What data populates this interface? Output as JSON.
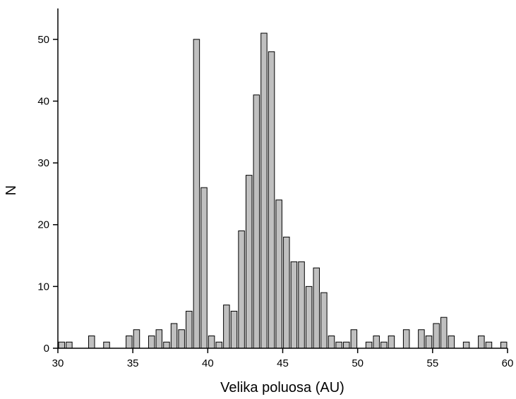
{
  "chart_data": {
    "type": "histogram",
    "x_label": "Velika poluosa (AU)",
    "y_label": "N",
    "bins": [
      30,
      30.5,
      31,
      31.5,
      32,
      32.5,
      33,
      33.5,
      34,
      34.5,
      35,
      35.5,
      36,
      36.5,
      37,
      37.5,
      38,
      38.5,
      39,
      39.5,
      40,
      40.5,
      41,
      41.5,
      42,
      42.5,
      43,
      43.5,
      44,
      44.5,
      45,
      45.5,
      46,
      46.5,
      47,
      47.5,
      48,
      48.5,
      49,
      49.5,
      50,
      50.5,
      51,
      51.5,
      52,
      52.5,
      53,
      53.5,
      54,
      54.5,
      55,
      55.5,
      56,
      56.5,
      57,
      57.5,
      58,
      58.5,
      59,
      59.5,
      60
    ],
    "values": [
      1,
      1,
      0,
      0,
      2,
      0,
      1,
      0,
      0,
      2,
      3,
      0,
      2,
      3,
      1,
      4,
      3,
      6,
      50,
      26,
      2,
      1,
      7,
      6,
      19,
      28,
      41,
      51,
      48,
      24,
      18,
      14,
      14,
      10,
      13,
      9,
      2,
      1,
      1,
      3,
      0,
      1,
      2,
      1,
      2,
      0,
      3,
      0,
      3,
      2,
      4,
      5,
      2,
      0,
      1,
      0,
      2,
      1,
      0,
      1
    ],
    "color": "#c0c0c0",
    "xlim": [
      30,
      60
    ],
    "xticks": [
      30,
      35,
      40,
      45,
      50,
      55,
      60
    ],
    "ylim": [
      0,
      55
    ],
    "yticks": [
      0,
      10,
      20,
      30,
      40,
      50
    ]
  }
}
